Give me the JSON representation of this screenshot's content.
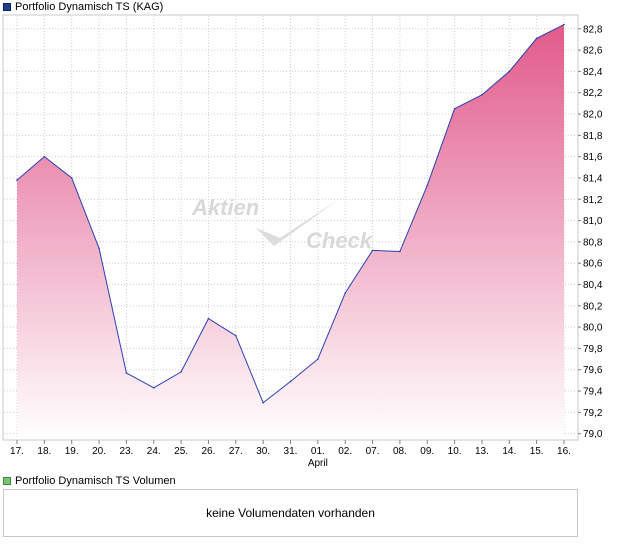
{
  "legend": {
    "price_label": "Portfolio Dynamisch TS (KAG)",
    "volume_label": "Portfolio Dynamisch TS Volumen"
  },
  "watermark": {
    "line1": "Aktien",
    "line2": "Check"
  },
  "volume_panel": {
    "message": "keine Volumendaten vorhanden"
  },
  "colors": {
    "line": "#2b3fb0",
    "fill_top": "#e15a8a",
    "fill_bottom": "#ffffff",
    "grid": "#d0d0d0"
  },
  "chart_data": {
    "type": "area",
    "series": [
      {
        "name": "Portfolio Dynamisch TS (KAG)",
        "values": [
          81.38,
          81.6,
          81.4,
          80.74,
          79.57,
          79.43,
          79.58,
          80.08,
          79.92,
          79.29,
          79.49,
          79.7,
          80.32,
          80.72,
          80.71,
          81.33,
          82.05,
          82.18,
          82.4,
          82.71,
          82.84
        ]
      }
    ],
    "categories": [
      "17.",
      "18.",
      "19.",
      "20.",
      "23.",
      "24.",
      "25.",
      "26.",
      "27.",
      "30.",
      "31.",
      "01.",
      "02.",
      "07.",
      "08.",
      "09.",
      "10.",
      "13.",
      "14.",
      "15.",
      "16."
    ],
    "month_label": {
      "category": "01.",
      "text": "April"
    },
    "y_ticks": [
      "79,0",
      "79,2",
      "79,4",
      "79,6",
      "79,8",
      "80,0",
      "80,2",
      "80,4",
      "80,6",
      "80,8",
      "81,0",
      "81,2",
      "81,4",
      "81,6",
      "81,8",
      "82,0",
      "82,2",
      "82,4",
      "82,6",
      "82,8"
    ],
    "ylim": [
      78.95,
      82.92
    ],
    "grid": true,
    "y_axis_position": "right",
    "legend": "top-left"
  }
}
